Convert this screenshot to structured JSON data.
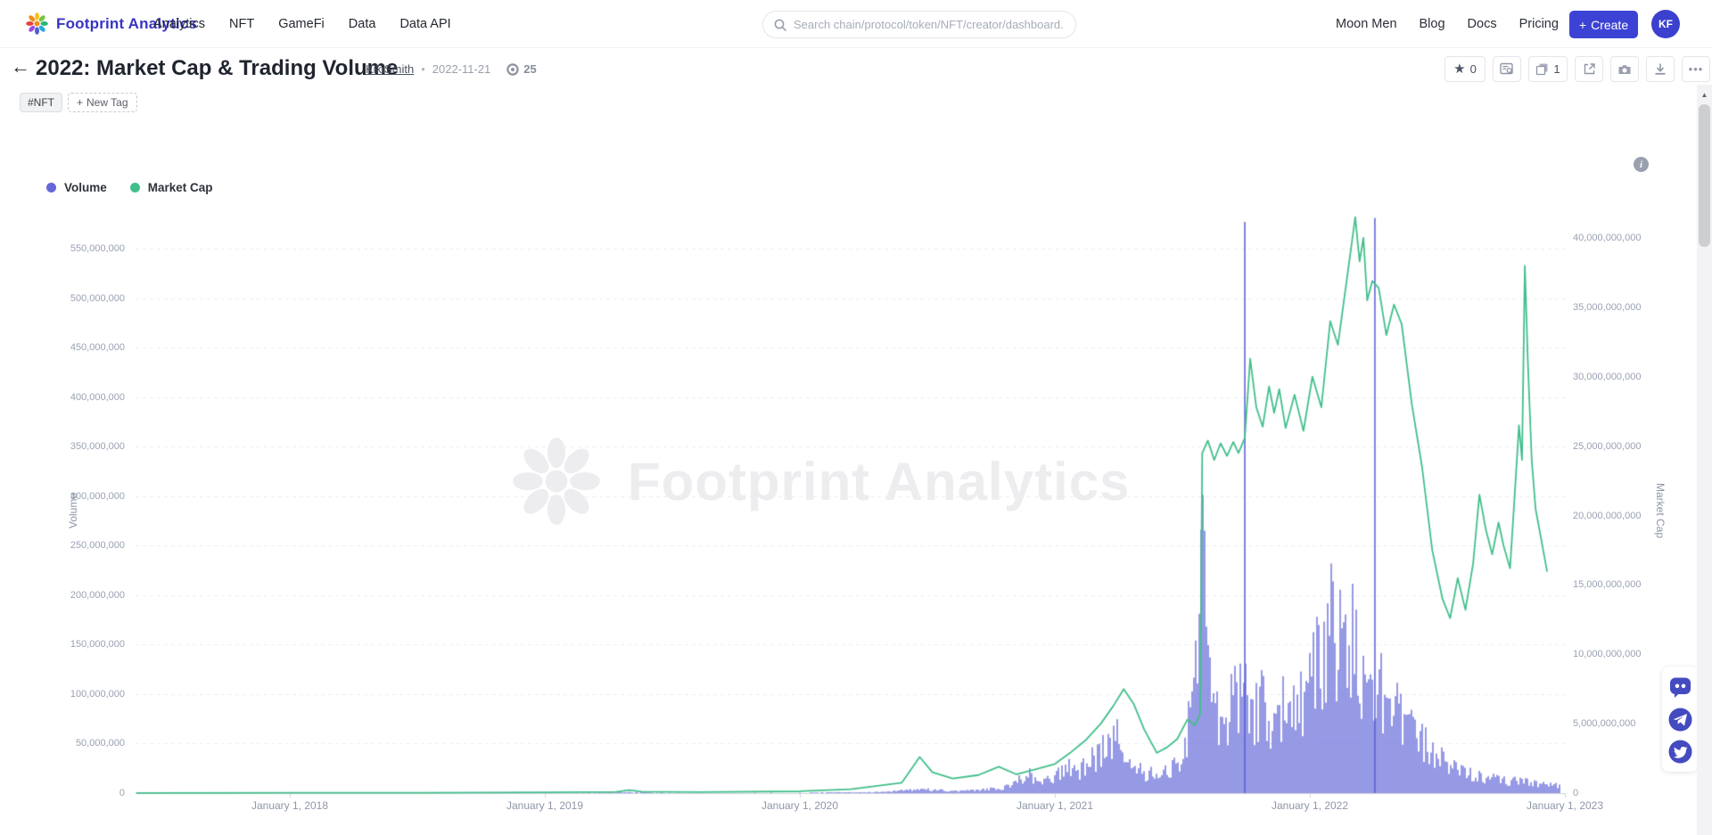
{
  "nav": {
    "brand": "Footprint Analytics",
    "items": [
      "Analytics",
      "NFT",
      "GameFi",
      "Data",
      "Data API"
    ],
    "search_placeholder": "Search chain/protocol/token/NFT/creator/dashboard...",
    "right_items": [
      "Moon Men",
      "Blog",
      "Docs",
      "Pricing"
    ],
    "create_plus": "+",
    "create_label": "Create",
    "avatar_initials": "KF"
  },
  "header": {
    "back_arrow": "←",
    "title": "2022: Market Cap & Trading Volume",
    "author": "KikiSmith",
    "separator": "•",
    "date": "2022-11-21",
    "views_count": "25",
    "toolbar": {
      "star_count": "0",
      "duplicate_count": "1",
      "more_label": "•••"
    }
  },
  "tags": {
    "tag_label": "#NFT",
    "new_tag_label": "New Tag",
    "new_tag_plus": "+"
  },
  "info_icon_glyph": "i",
  "watermark_text": "Footprint Analytics",
  "chart_data": {
    "type": "mixed",
    "legend": [
      {
        "name": "Volume",
        "color": "#6468d8",
        "type": "bar"
      },
      {
        "name": "Market Cap",
        "color": "#41bf8b",
        "type": "line"
      }
    ],
    "x_axis": {
      "type": "time",
      "tick_labels": [
        "January 1, 2018",
        "January 1, 2019",
        "January 1, 2020",
        "January 1, 2021",
        "January 1, 2022",
        "January 1, 2023"
      ],
      "tick_years": [
        2018,
        2019,
        2020,
        2021,
        2022,
        2023
      ],
      "range_decimal_years": [
        2017.395,
        2023.005
      ]
    },
    "y_left": {
      "name": "Volume",
      "max": 550000000,
      "tick_labels": [
        "0",
        "50,000,000",
        "100,000,000",
        "150,000,000",
        "200,000,000",
        "250,000,000",
        "300,000,000",
        "350,000,000",
        "400,000,000",
        "450,000,000",
        "500,000,000",
        "550,000,000"
      ]
    },
    "y_right": {
      "name": "Market Cap",
      "max": 40000000000,
      "tick_labels": [
        "0",
        "5,000,000,000",
        "10,000,000,000",
        "15,000,000,000",
        "20,000,000,000",
        "25,000,000,000",
        "30,000,000,000",
        "35,000,000,000",
        "40,000,000,000"
      ]
    },
    "grid": {
      "horizontal_dashed": true
    },
    "series": [
      {
        "name": "Volume",
        "type": "bar",
        "axis": "left",
        "unit": "millions_usd",
        "color": "#6a6ed9",
        "spike_color": "#575dd0",
        "points": [
          [
            2019.0,
            0.3
          ],
          [
            2019.33,
            1.2
          ],
          [
            2019.6,
            0.4
          ],
          [
            2020.0,
            0.7
          ],
          [
            2020.3,
            1.5
          ],
          [
            2020.47,
            6
          ],
          [
            2020.6,
            3
          ],
          [
            2020.7,
            4
          ],
          [
            2020.8,
            8
          ],
          [
            2020.85,
            16
          ],
          [
            2020.9,
            26
          ],
          [
            2020.95,
            14
          ],
          [
            2021.0,
            22
          ],
          [
            2021.05,
            38
          ],
          [
            2021.1,
            32
          ],
          [
            2021.15,
            48
          ],
          [
            2021.2,
            62
          ],
          [
            2021.25,
            78
          ],
          [
            2021.3,
            45
          ],
          [
            2021.35,
            30
          ],
          [
            2021.4,
            24
          ],
          [
            2021.45,
            33
          ],
          [
            2021.5,
            50
          ],
          [
            2021.545,
            150
          ],
          [
            2021.573,
            360
          ],
          [
            2021.59,
            250
          ],
          [
            2021.61,
            160
          ],
          [
            2021.63,
            120
          ],
          [
            2021.65,
            95
          ],
          [
            2021.68,
            115
          ],
          [
            2021.71,
            140
          ],
          [
            2021.745,
            135
          ],
          [
            2021.78,
            105
          ],
          [
            2021.82,
            130
          ],
          [
            2021.86,
            100
          ],
          [
            2021.9,
            125
          ],
          [
            2021.94,
            115
          ],
          [
            2021.98,
            140
          ],
          [
            2022.02,
            170
          ],
          [
            2022.06,
            215
          ],
          [
            2022.09,
            245
          ],
          [
            2022.11,
            195
          ],
          [
            2022.13,
            225
          ],
          [
            2022.155,
            250
          ],
          [
            2022.18,
            205
          ],
          [
            2022.21,
            170
          ],
          [
            2022.24,
            150
          ],
          [
            2022.27,
            145
          ],
          [
            2022.3,
            135
          ],
          [
            2022.34,
            115
          ],
          [
            2022.38,
            95
          ],
          [
            2022.42,
            82
          ],
          [
            2022.46,
            66
          ],
          [
            2022.5,
            52
          ],
          [
            2022.55,
            42
          ],
          [
            2022.6,
            33
          ],
          [
            2022.65,
            27
          ],
          [
            2022.7,
            23
          ],
          [
            2022.75,
            19
          ],
          [
            2022.8,
            17
          ],
          [
            2022.85,
            15
          ],
          [
            2022.9,
            13
          ],
          [
            2022.94,
            11
          ],
          [
            2022.98,
            10
          ]
        ],
        "spikes": [
          [
            2021.745,
            577
          ],
          [
            2022.255,
            581
          ]
        ]
      },
      {
        "name": "Market Cap",
        "type": "line",
        "axis": "right",
        "unit": "billions_usd",
        "color": "#41bf8b",
        "points": [
          [
            2017.4,
            0.01
          ],
          [
            2018.0,
            0.02
          ],
          [
            2018.5,
            0.03
          ],
          [
            2019.0,
            0.05
          ],
          [
            2019.28,
            0.09
          ],
          [
            2019.33,
            0.22
          ],
          [
            2019.38,
            0.1
          ],
          [
            2019.6,
            0.07
          ],
          [
            2020.0,
            0.13
          ],
          [
            2020.2,
            0.28
          ],
          [
            2020.4,
            0.75
          ],
          [
            2020.47,
            2.6
          ],
          [
            2020.52,
            1.5
          ],
          [
            2020.6,
            1.05
          ],
          [
            2020.7,
            1.3
          ],
          [
            2020.78,
            1.9
          ],
          [
            2020.85,
            1.35
          ],
          [
            2020.92,
            1.7
          ],
          [
            2021.0,
            2.1
          ],
          [
            2021.06,
            2.9
          ],
          [
            2021.12,
            3.8
          ],
          [
            2021.18,
            5.0
          ],
          [
            2021.23,
            6.3
          ],
          [
            2021.27,
            7.5
          ],
          [
            2021.31,
            6.4
          ],
          [
            2021.35,
            4.6
          ],
          [
            2021.4,
            2.9
          ],
          [
            2021.44,
            3.3
          ],
          [
            2021.48,
            3.9
          ],
          [
            2021.52,
            5.3
          ],
          [
            2021.55,
            4.9
          ],
          [
            2021.57,
            5.7
          ],
          [
            2021.578,
            24.5
          ],
          [
            2021.6,
            25.4
          ],
          [
            2021.625,
            24.0
          ],
          [
            2021.65,
            25.2
          ],
          [
            2021.675,
            24.3
          ],
          [
            2021.7,
            25.3
          ],
          [
            2021.72,
            24.5
          ],
          [
            2021.745,
            25.6
          ],
          [
            2021.766,
            31.3
          ],
          [
            2021.79,
            27.8
          ],
          [
            2021.815,
            26.4
          ],
          [
            2021.84,
            29.3
          ],
          [
            2021.86,
            27.4
          ],
          [
            2021.88,
            29.1
          ],
          [
            2021.905,
            26.3
          ],
          [
            2021.94,
            28.7
          ],
          [
            2021.975,
            26.1
          ],
          [
            2022.01,
            30.0
          ],
          [
            2022.045,
            27.8
          ],
          [
            2022.08,
            34.0
          ],
          [
            2022.11,
            32.3
          ],
          [
            2022.145,
            37.0
          ],
          [
            2022.178,
            41.5
          ],
          [
            2022.195,
            38.3
          ],
          [
            2022.21,
            40.0
          ],
          [
            2022.225,
            35.5
          ],
          [
            2022.245,
            36.9
          ],
          [
            2022.27,
            36.4
          ],
          [
            2022.3,
            33.0
          ],
          [
            2022.33,
            35.2
          ],
          [
            2022.36,
            33.8
          ],
          [
            2022.4,
            28.0
          ],
          [
            2022.44,
            23.5
          ],
          [
            2022.48,
            17.5
          ],
          [
            2022.52,
            14.0
          ],
          [
            2022.55,
            12.6
          ],
          [
            2022.58,
            15.5
          ],
          [
            2022.61,
            13.2
          ],
          [
            2022.64,
            16.5
          ],
          [
            2022.665,
            21.5
          ],
          [
            2022.69,
            19.0
          ],
          [
            2022.715,
            17.2
          ],
          [
            2022.74,
            19.5
          ],
          [
            2022.76,
            17.8
          ],
          [
            2022.785,
            16.2
          ],
          [
            2022.805,
            22.0
          ],
          [
            2022.82,
            26.5
          ],
          [
            2022.832,
            24.0
          ],
          [
            2022.843,
            38.0
          ],
          [
            2022.855,
            31.0
          ],
          [
            2022.87,
            24.0
          ],
          [
            2022.885,
            20.5
          ],
          [
            2022.905,
            18.5
          ],
          [
            2022.93,
            16.0
          ]
        ]
      }
    ]
  }
}
